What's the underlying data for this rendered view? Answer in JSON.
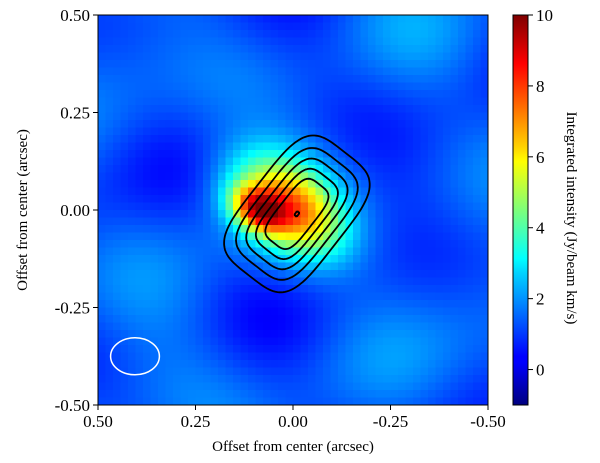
{
  "chart_data": {
    "type": "heatmap",
    "title": "",
    "xlabel": "Offset from center (arcsec)",
    "ylabel": "Offset from center (arcsec)",
    "xlim": [
      0.5,
      -0.5
    ],
    "ylim": [
      -0.5,
      0.5
    ],
    "x_ticks": [
      0.5,
      0.25,
      0.0,
      -0.25,
      -0.5
    ],
    "x_tick_labels": [
      "0.50",
      "0.25",
      "0.00",
      "-0.25",
      "-0.50"
    ],
    "y_ticks": [
      0.5,
      0.25,
      0.0,
      -0.25,
      -0.5
    ],
    "y_tick_labels": [
      "0.50",
      "0.25",
      "0.00",
      "-0.25",
      "-0.50"
    ],
    "colormap": "jet",
    "grid": false,
    "colorbar": {
      "label": "Integrated intensity (Jy/beam km/s)",
      "range": [
        -1,
        10
      ],
      "ticks": [
        0,
        2,
        4,
        6,
        8,
        10
      ],
      "tick_labels": [
        "0",
        "2",
        "4",
        "6",
        "8",
        "10"
      ]
    },
    "background_level": 1.3,
    "emission_components": [
      {
        "x": 0.03,
        "y": 0.02,
        "sigma_x": 0.105,
        "sigma_y": 0.075,
        "angle_deg": 38,
        "peak": 4.6
      },
      {
        "x": 0.09,
        "y": 0.0,
        "sigma_x": 0.05,
        "sigma_y": 0.035,
        "angle_deg": 30,
        "peak": 4.8
      },
      {
        "x": -0.04,
        "y": -0.02,
        "sigma_x": 0.085,
        "sigma_y": 0.06,
        "angle_deg": 45,
        "peak": 1.6
      }
    ],
    "contours": {
      "color": "#000000",
      "center": [
        -0.01,
        -0.01
      ],
      "angle_deg": 52,
      "levels": [
        {
          "semi_major": 0.2,
          "semi_minor": 0.125
        },
        {
          "semi_major": 0.17,
          "semi_minor": 0.102
        },
        {
          "semi_major": 0.145,
          "semi_minor": 0.082
        },
        {
          "semi_major": 0.12,
          "semi_minor": 0.064
        },
        {
          "semi_major": 0.095,
          "semi_minor": 0.047
        },
        {
          "semi_major": 0.006,
          "semi_minor": 0.004
        }
      ]
    },
    "beam": {
      "x": 0.405,
      "y": -0.375,
      "major": 0.125,
      "minor": 0.095,
      "angle_deg": 0,
      "color": "#ffffff"
    }
  }
}
